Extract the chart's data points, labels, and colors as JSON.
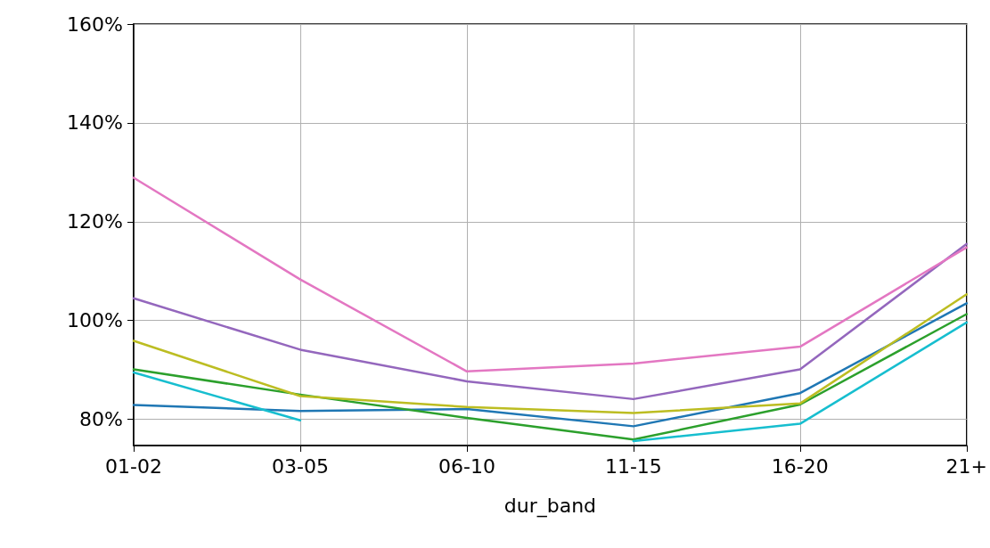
{
  "chart_data": {
    "type": "line",
    "xlabel": "dur_band",
    "categories": [
      "01-02",
      "03-05",
      "06-10",
      "11-15",
      "16-20",
      "21+"
    ],
    "series": [
      {
        "color": "#1f77b4",
        "values": [
          82.9,
          81.7,
          82.1,
          78.6,
          85.3,
          103.5
        ]
      },
      {
        "color": "#2ca02c",
        "values": [
          90.1,
          85.0,
          80.3,
          75.9,
          83.0,
          101.3
        ]
      },
      {
        "color": "#9467bd",
        "values": [
          104.5,
          94.1,
          87.7,
          84.1,
          90.1,
          115.5
        ]
      },
      {
        "color": "#e377c2",
        "values": [
          128.9,
          108.3,
          89.7,
          91.3,
          94.7,
          114.8
        ]
      },
      {
        "color": "#bcbd22",
        "values": [
          95.9,
          84.7,
          82.5,
          81.3,
          83.2,
          105.3
        ]
      },
      {
        "color": "#17becf",
        "values": [
          89.5,
          79.8,
          null,
          75.6,
          79.1,
          99.6
        ]
      }
    ],
    "ylim": [
      74.7,
      160
    ],
    "yticks": [
      {
        "value": 80,
        "label": "80%"
      },
      {
        "value": 100,
        "label": "100%"
      },
      {
        "value": 120,
        "label": "120%"
      },
      {
        "value": 140,
        "label": "140%"
      },
      {
        "value": 160,
        "label": "160%"
      }
    ],
    "grid": true,
    "marker": "none",
    "line_style": "solid"
  }
}
